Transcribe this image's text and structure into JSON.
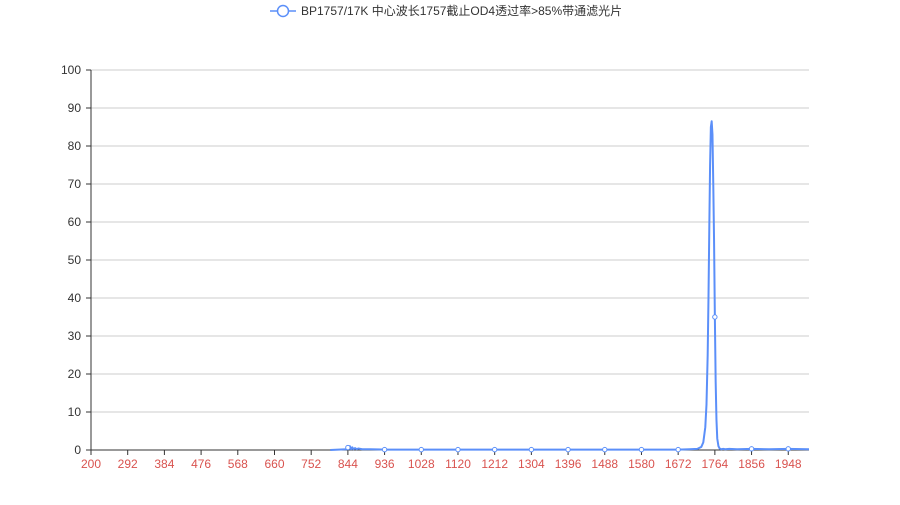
{
  "chart_data": {
    "type": "line",
    "title": "",
    "legend": {
      "position": "top-center",
      "entries": [
        "BP1757/17K 中心波长1757截止OD4透过率>85%带通滤光片"
      ]
    },
    "xlabel": "",
    "ylabel": "",
    "xlim": [
      200,
      2000
    ],
    "ylim": [
      0,
      100
    ],
    "x_ticks": [
      "200",
      "292",
      "384",
      "476",
      "568",
      "660",
      "752",
      "844",
      "936",
      "1028",
      "1120",
      "1212",
      "1304",
      "1396",
      "1488",
      "1580",
      "1672",
      "1764",
      "1856",
      "1948"
    ],
    "y_ticks": [
      "0",
      "10",
      "20",
      "30",
      "40",
      "50",
      "60",
      "70",
      "80",
      "90",
      "100"
    ],
    "grid": true,
    "colors": {
      "series": "#5b8ff9",
      "x_tick_label": "#d9534f",
      "axis": "#333333",
      "grid": "#cccccc"
    },
    "series": [
      {
        "name": "BP1757/17K 中心波长1757截止OD4透过率>85%带通滤光片",
        "x": [
          800,
          820,
          840,
          843,
          846,
          849,
          852,
          855,
          858,
          862,
          866,
          870,
          880,
          900,
          936,
          1000,
          1028,
          1100,
          1120,
          1200,
          1212,
          1300,
          1304,
          1396,
          1400,
          1488,
          1500,
          1580,
          1600,
          1650,
          1672,
          1700,
          1720,
          1730,
          1735,
          1740,
          1743,
          1746,
          1748,
          1750,
          1752,
          1754,
          1756,
          1758,
          1760,
          1762,
          1764,
          1766,
          1768,
          1770,
          1773,
          1776,
          1780,
          1785,
          1790,
          1800,
          1820,
          1856,
          1900,
          1948,
          2000
        ],
        "y": [
          0,
          0.1,
          0.2,
          0.8,
          0.3,
          1.0,
          0.2,
          0.7,
          0.2,
          0.5,
          0.2,
          0.4,
          0.2,
          0.2,
          0.1,
          0.1,
          0.1,
          0.1,
          0.1,
          0.1,
          0.1,
          0.1,
          0.1,
          0.1,
          0.1,
          0.1,
          0.1,
          0.1,
          0.1,
          0.1,
          0.1,
          0.2,
          0.3,
          0.8,
          2,
          6,
          12,
          25,
          40,
          58,
          75,
          85,
          86.5,
          83,
          70,
          55,
          35,
          18,
          8,
          3,
          1,
          0.4,
          0.2,
          0.3,
          0.2,
          0.3,
          0.2,
          0.3,
          0.2,
          0.3,
          0.2
        ],
        "markers_x": [
          844,
          936,
          1028,
          1120,
          1212,
          1304,
          1396,
          1488,
          1580,
          1672,
          1764,
          1856,
          1948
        ]
      }
    ]
  }
}
